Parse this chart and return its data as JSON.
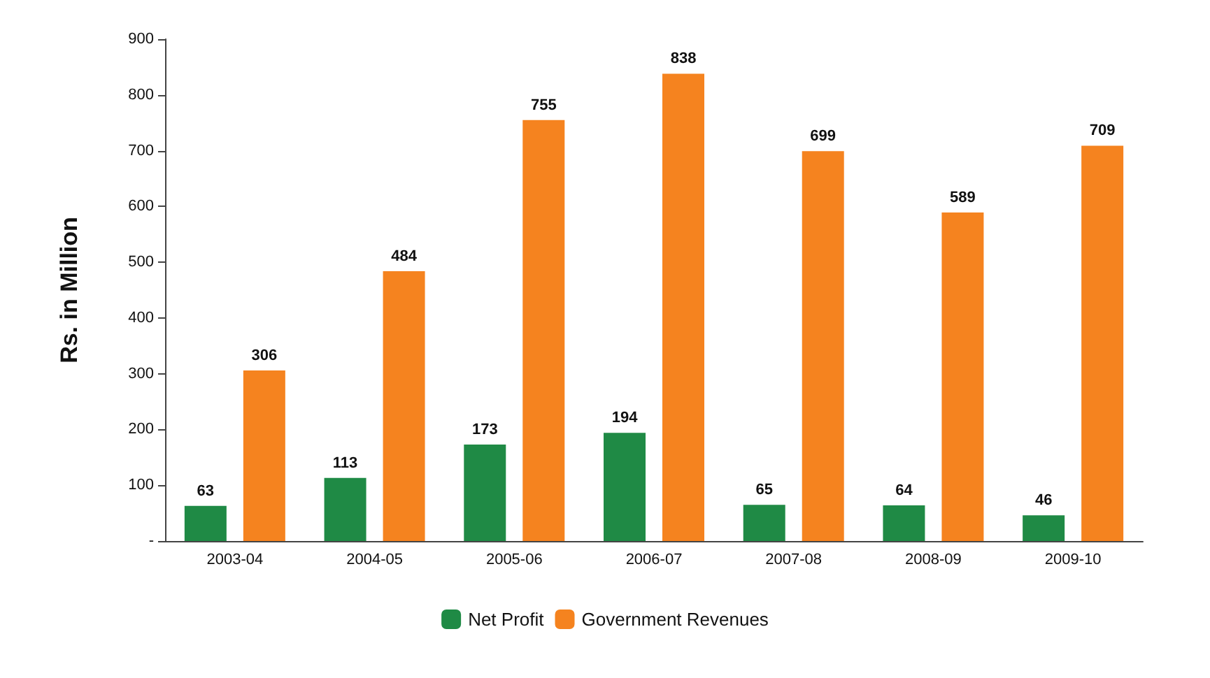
{
  "chart_data": {
    "type": "bar",
    "ylabel": "Rs. in Million",
    "categories": [
      "2003-04",
      "2004-05",
      "2005-06",
      "2006-07",
      "2007-08",
      "2008-09",
      "2009-10"
    ],
    "series": [
      {
        "name": "Net Profit",
        "color": "#1f8a45",
        "values": [
          63,
          113,
          173,
          194,
          65,
          64,
          46
        ]
      },
      {
        "name": "Government Revenues",
        "color": "#f5831f",
        "values": [
          306,
          484,
          755,
          838,
          699,
          589,
          709
        ]
      }
    ],
    "ylim": [
      0,
      900
    ],
    "yticks": [
      {
        "value": 0,
        "label": "-"
      },
      100,
      200,
      300,
      400,
      500,
      600,
      700,
      800,
      900
    ],
    "data_labels": true,
    "grid": false,
    "legend": "bottom"
  }
}
